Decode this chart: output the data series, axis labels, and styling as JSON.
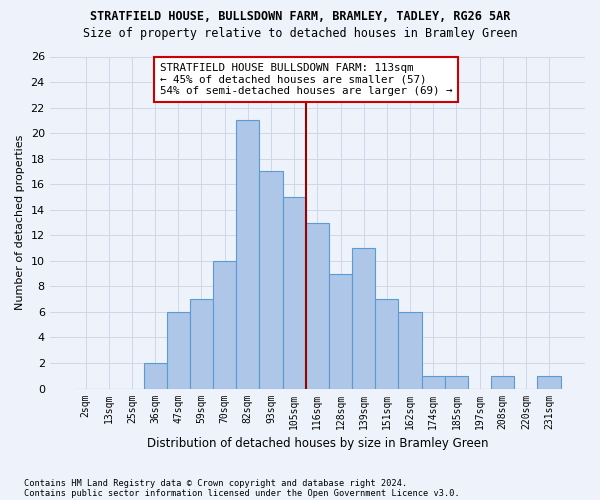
{
  "title1": "STRATFIELD HOUSE, BULLSDOWN FARM, BRAMLEY, TADLEY, RG26 5AR",
  "title2": "Size of property relative to detached houses in Bramley Green",
  "xlabel": "Distribution of detached houses by size in Bramley Green",
  "ylabel": "Number of detached properties",
  "footnote1": "Contains HM Land Registry data © Crown copyright and database right 2024.",
  "footnote2": "Contains public sector information licensed under the Open Government Licence v3.0.",
  "bin_labels": [
    "2sqm",
    "13sqm",
    "25sqm",
    "36sqm",
    "47sqm",
    "59sqm",
    "70sqm",
    "82sqm",
    "93sqm",
    "105sqm",
    "116sqm",
    "128sqm",
    "139sqm",
    "151sqm",
    "162sqm",
    "174sqm",
    "185sqm",
    "197sqm",
    "208sqm",
    "220sqm",
    "231sqm"
  ],
  "bar_values": [
    0,
    0,
    0,
    2,
    6,
    7,
    10,
    21,
    17,
    15,
    13,
    9,
    11,
    7,
    6,
    1,
    1,
    0,
    1,
    0,
    1
  ],
  "bar_color": "#aec6e8",
  "bar_edge_color": "#5b9bd5",
  "grid_color": "#d0d8e8",
  "vline_x": 9.5,
  "vline_color": "#990000",
  "annotation_text": "STRATFIELD HOUSE BULLSDOWN FARM: 113sqm\n← 45% of detached houses are smaller (57)\n54% of semi-detached houses are larger (69) →",
  "annotation_box_color": "#ffffff",
  "annotation_box_edge": "#cc0000",
  "ylim": [
    0,
    26
  ],
  "yticks": [
    0,
    2,
    4,
    6,
    8,
    10,
    12,
    14,
    16,
    18,
    20,
    22,
    24,
    26
  ],
  "background_color": "#eef2fa"
}
